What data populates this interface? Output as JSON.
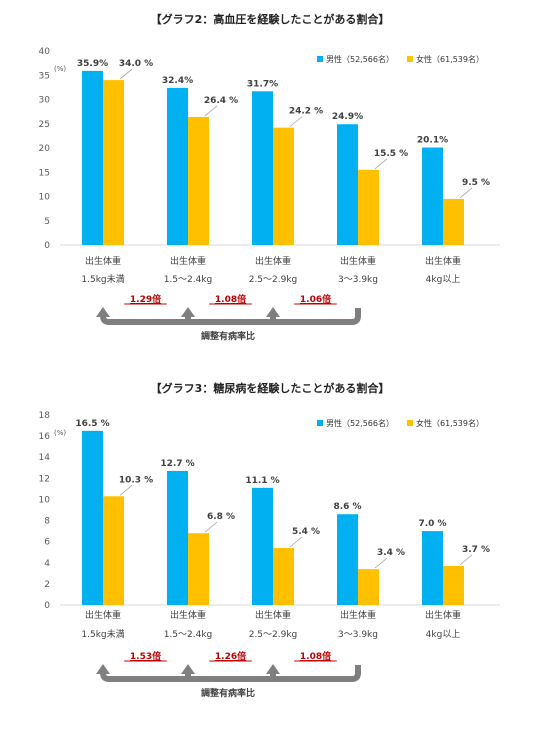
{
  "legend": {
    "male": "男性（52,566名）",
    "female": "女性（61,539名）"
  },
  "colors": {
    "male": "#00B0F0",
    "female": "#FFC000",
    "ratio_text": "#C00000",
    "arrow": "#7F7F7F",
    "axis_text": "#595959"
  },
  "chart_data": [
    {
      "type": "bar",
      "title": "【グラフ2：高血圧を経験したことがある割合】",
      "unit": "(%)",
      "ylim": [
        0,
        40
      ],
      "yticks": [
        "0",
        "5",
        "10",
        "15",
        "20",
        "25",
        "30",
        "35",
        "40"
      ],
      "categories": [
        {
          "line1": "出生体重",
          "line2": "1.5kg未満"
        },
        {
          "line1": "出生体重",
          "line2": "1.5〜2.4kg"
        },
        {
          "line1": "出生体重",
          "line2": "2.5〜2.9kg"
        },
        {
          "line1": "出生体重",
          "line2": "3〜3.9kg"
        },
        {
          "line1": "出生体重",
          "line2": "4kg以上"
        }
      ],
      "series": [
        {
          "name": "男性（52,566名）",
          "values": [
            35.9,
            32.4,
            31.7,
            24.9,
            20.1
          ],
          "labels": [
            "35.9%",
            "32.4%",
            "31.7%",
            "24.9%",
            "20.1%"
          ]
        },
        {
          "name": "女性（61,539名）",
          "values": [
            34.0,
            26.4,
            24.2,
            15.5,
            9.5
          ],
          "labels": [
            "34.0 %",
            "26.4 %",
            "24.2 %",
            "15.5 %",
            "9.5 %"
          ]
        }
      ],
      "ratios": [
        "1.29倍",
        "1.08倍",
        "1.06倍"
      ],
      "ratio_caption": "調整有病率比"
    },
    {
      "type": "bar",
      "title": "【グラフ3：糖尿病を経験したことがある割合】",
      "unit": "(%)",
      "ylim": [
        0,
        18
      ],
      "yticks": [
        "0",
        "2",
        "4",
        "6",
        "8",
        "10",
        "12",
        "14",
        "16",
        "18"
      ],
      "categories": [
        {
          "line1": "出生体重",
          "line2": "1.5kg未満"
        },
        {
          "line1": "出生体重",
          "line2": "1.5〜2.4kg"
        },
        {
          "line1": "出生体重",
          "line2": "2.5〜2.9kg"
        },
        {
          "line1": "出生体重",
          "line2": "3〜3.9kg"
        },
        {
          "line1": "出生体重",
          "line2": "4kg以上"
        }
      ],
      "series": [
        {
          "name": "男性（52,566名）",
          "values": [
            16.5,
            12.7,
            11.1,
            8.6,
            7.0
          ],
          "labels": [
            "16.5 %",
            "12.7 %",
            "11.1 %",
            "8.6 %",
            "7.0 %"
          ]
        },
        {
          "name": "女性（61,539名）",
          "values": [
            10.3,
            6.8,
            5.4,
            3.4,
            3.7
          ],
          "labels": [
            "10.3 %",
            "6.8 %",
            "5.4 %",
            "3.4 %",
            "3.7 %"
          ]
        }
      ],
      "ratios": [
        "1.53倍",
        "1.26倍",
        "1.08倍"
      ],
      "ratio_caption": "調整有病率比"
    }
  ]
}
